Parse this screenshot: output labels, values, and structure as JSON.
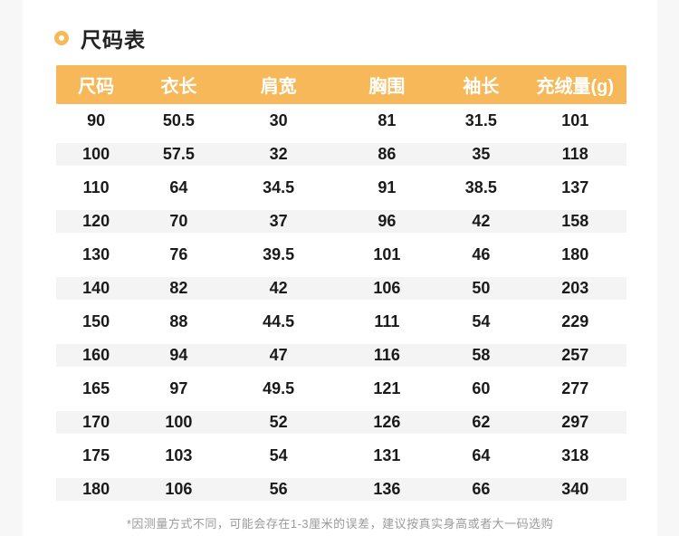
{
  "page": {
    "title": "尺码表",
    "footnote": "*因测量方式不同，可能会存在1-3厘米的误差，建议按真实身高或者大一码选购"
  },
  "colors": {
    "accent": "#F6B858",
    "alt_row_bg": "#F4F4F4",
    "page_margin_bg": "#F7F7F7",
    "header_text": "#FFFFFF",
    "body_text": "#1A1A1A",
    "footnote_text": "#9B9B9B"
  },
  "icons": {
    "title_bullet": "ring-icon"
  },
  "chart_data": {
    "type": "table",
    "title": "尺码表",
    "columns": [
      "尺码",
      "衣长",
      "肩宽",
      "胸围",
      "袖长",
      "充绒量(g)"
    ],
    "rows": [
      [
        "90",
        "50.5",
        "30",
        "81",
        "31.5",
        "101"
      ],
      [
        "100",
        "57.5",
        "32",
        "86",
        "35",
        "118"
      ],
      [
        "110",
        "64",
        "34.5",
        "91",
        "38.5",
        "137"
      ],
      [
        "120",
        "70",
        "37",
        "96",
        "42",
        "158"
      ],
      [
        "130",
        "76",
        "39.5",
        "101",
        "46",
        "180"
      ],
      [
        "140",
        "82",
        "42",
        "106",
        "50",
        "203"
      ],
      [
        "150",
        "88",
        "44.5",
        "111",
        "54",
        "229"
      ],
      [
        "160",
        "94",
        "47",
        "116",
        "58",
        "257"
      ],
      [
        "165",
        "97",
        "49.5",
        "121",
        "60",
        "277"
      ],
      [
        "170",
        "100",
        "52",
        "126",
        "62",
        "297"
      ],
      [
        "175",
        "103",
        "54",
        "131",
        "64",
        "318"
      ],
      [
        "180",
        "106",
        "56",
        "136",
        "66",
        "340"
      ]
    ],
    "footnote": "*因测量方式不同，可能会存在1-3厘米的误差，建议按真实身高或者大一码选购",
    "layout": {
      "zebra_striping": "rows 100/120/140/160/170/180 shaded",
      "header_background": "#F6B858",
      "grid": false,
      "legend_position": "none"
    }
  }
}
